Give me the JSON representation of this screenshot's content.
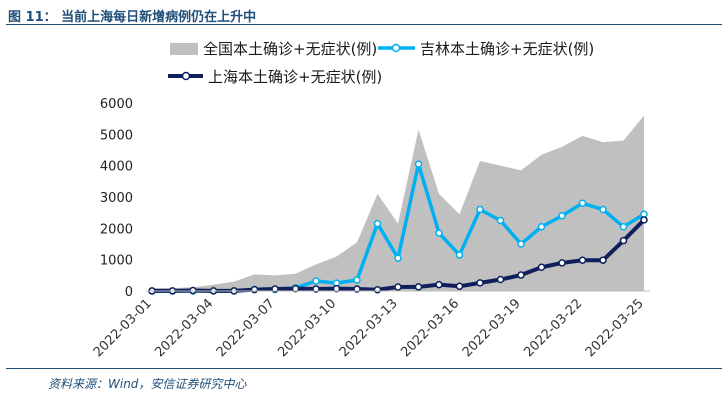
{
  "figure": {
    "title": "图 11：  当前上海每日新增病例仍在上升中",
    "source": "资料来源：Wind，安信证券研究中心"
  },
  "chart_data": {
    "type": "area",
    "title": "",
    "xlabel": "",
    "ylabel": "",
    "ylim": [
      0,
      6000
    ],
    "yticks": [
      0,
      1000,
      2000,
      3000,
      4000,
      5000,
      6000
    ],
    "grid": false,
    "legend_position": "top",
    "x": [
      "2022-03-01",
      "2022-03-02",
      "2022-03-03",
      "2022-03-04",
      "2022-03-05",
      "2022-03-06",
      "2022-03-07",
      "2022-03-08",
      "2022-03-09",
      "2022-03-10",
      "2022-03-11",
      "2022-03-12",
      "2022-03-13",
      "2022-03-14",
      "2022-03-15",
      "2022-03-16",
      "2022-03-17",
      "2022-03-18",
      "2022-03-19",
      "2022-03-20",
      "2022-03-21",
      "2022-03-22",
      "2022-03-23",
      "2022-03-24",
      "2022-03-25"
    ],
    "xtick_labels": [
      "2022-03-01",
      "2022-03-04",
      "2022-03-07",
      "2022-03-10",
      "2022-03-13",
      "2022-03-16",
      "2022-03-19",
      "2022-03-22",
      "2022-03-25"
    ],
    "series": [
      {
        "name": "全国本土确诊+无症状(例)",
        "kind": "area",
        "color": "#c0c0c0",
        "values": [
          90,
          90,
          120,
          200,
          300,
          530,
          500,
          550,
          850,
          1100,
          1550,
          3100,
          2150,
          5150,
          3100,
          2450,
          4150,
          4000,
          3850,
          4350,
          4600,
          4950,
          4750,
          4800,
          5600
        ]
      },
      {
        "name": "吉林本土确诊+无症状(例)",
        "kind": "line",
        "color": "#00b0f0",
        "values": [
          0,
          0,
          0,
          0,
          0,
          50,
          50,
          100,
          320,
          250,
          350,
          2150,
          1050,
          4050,
          1850,
          1150,
          2600,
          2250,
          1500,
          2050,
          2400,
          2800,
          2600,
          2050,
          2450
        ]
      },
      {
        "name": "上海本土确诊+无症状(例)",
        "kind": "line",
        "color": "#0e1f5b",
        "values": [
          2,
          5,
          16,
          5,
          3,
          45,
          62,
          76,
          64,
          75,
          64,
          40,
          128,
          130,
          202,
          150,
          260,
          366,
          509,
          758,
          896,
          981,
          983,
          1609,
          2269
        ]
      }
    ]
  }
}
